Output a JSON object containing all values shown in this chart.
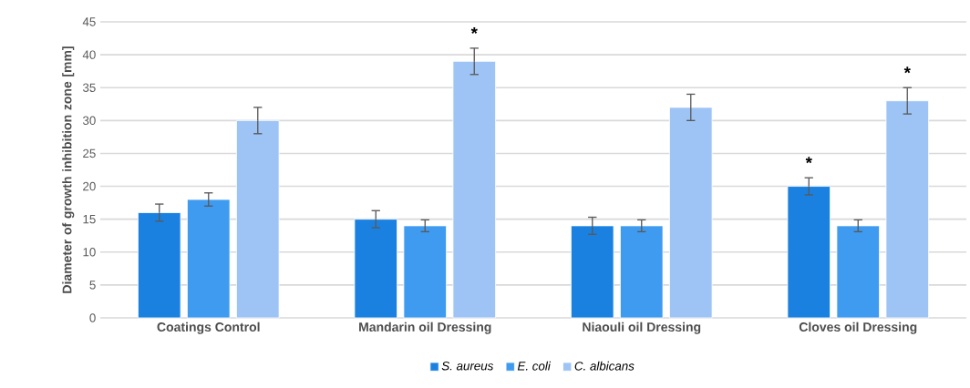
{
  "chart_data": {
    "type": "bar",
    "ylabel": "Diameter of growth inhibition zone [mm]",
    "categories": [
      "Coatings Control",
      "Mandarin oil Dressing",
      "Niaouli oil Dressing",
      "Cloves oil Dressing"
    ],
    "series": [
      {
        "name": "S. aureus",
        "color": "#1b81e0",
        "values": [
          16,
          15,
          14,
          20
        ],
        "errors": [
          1.3,
          1.3,
          1.3,
          1.3
        ],
        "value_labels": [
          null,
          null,
          null,
          "*"
        ]
      },
      {
        "name": "E. coli",
        "color": "#3f9bf0",
        "values": [
          18,
          14,
          14,
          14
        ],
        "errors": [
          1,
          0.9,
          0.9,
          0.9
        ]
      },
      {
        "name": "C. albicans",
        "color": "#9dc4f5",
        "values": [
          30,
          39,
          32,
          33
        ],
        "errors": [
          2,
          2,
          2,
          2
        ],
        "value_labels": [
          null,
          "*",
          null,
          "*"
        ]
      }
    ],
    "ylim": [
      0,
      45
    ],
    "yticks": [
      0,
      5,
      10,
      15,
      20,
      25,
      30,
      35,
      40,
      45
    ],
    "grid": "y",
    "legend": "bottom"
  }
}
